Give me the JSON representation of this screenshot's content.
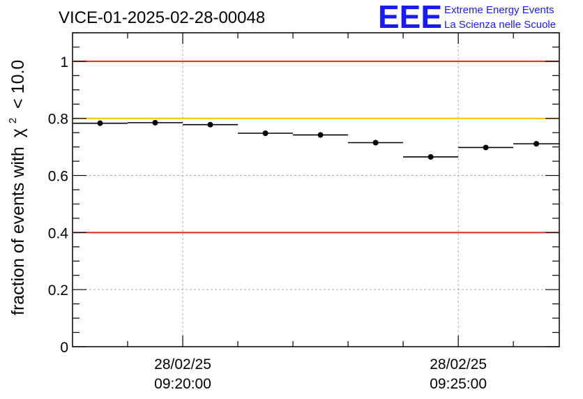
{
  "logo": {
    "mark": "EEE",
    "line1": "Extreme Energy Events",
    "line2": "La Scienza nelle Scuole"
  },
  "chart_data": {
    "type": "scatter",
    "title": "VICE-01-2025-02-28-00048",
    "ylabel": "fraction of events with",
    "ylabel_chi": "χ",
    "ylabel_exp": "2",
    "ylabel_tail": "< 10.0",
    "xlim": [
      "09:18:00",
      "09:26:50"
    ],
    "ylim": [
      0,
      1.1
    ],
    "y_ticks": [
      0,
      0.2,
      0.4,
      0.6,
      0.8,
      1
    ],
    "y_tick_labels": [
      "0",
      "0.2",
      "0.4",
      "0.6",
      "0.8",
      "1"
    ],
    "x_ticks": [
      {
        "time": "09:20:00",
        "date_label": "28/02/25",
        "time_label": "09:20:00"
      },
      {
        "time": "09:25:00",
        "date_label": "28/02/25",
        "time_label": "09:25:00"
      }
    ],
    "grid": true,
    "reference_lines": [
      {
        "y": 1.0,
        "color": "#e8261e"
      },
      {
        "y": 0.8,
        "color": "#ffc000"
      },
      {
        "y": 0.4,
        "color": "#e8261e"
      }
    ],
    "points": [
      {
        "x_start": "09:18:00",
        "x_end": "09:19:00",
        "y": 0.783
      },
      {
        "x_start": "09:19:00",
        "x_end": "09:20:00",
        "y": 0.785
      },
      {
        "x_start": "09:20:00",
        "x_end": "09:21:00",
        "y": 0.778
      },
      {
        "x_start": "09:21:00",
        "x_end": "09:22:00",
        "y": 0.748
      },
      {
        "x_start": "09:22:00",
        "x_end": "09:23:00",
        "y": 0.742
      },
      {
        "x_start": "09:23:00",
        "x_end": "09:24:00",
        "y": 0.715
      },
      {
        "x_start": "09:24:00",
        "x_end": "09:25:00",
        "y": 0.665
      },
      {
        "x_start": "09:25:00",
        "x_end": "09:26:00",
        "y": 0.698
      },
      {
        "x_start": "09:26:00",
        "x_end": "09:26:50",
        "y": 0.711
      }
    ],
    "marker_color": "#000000"
  }
}
